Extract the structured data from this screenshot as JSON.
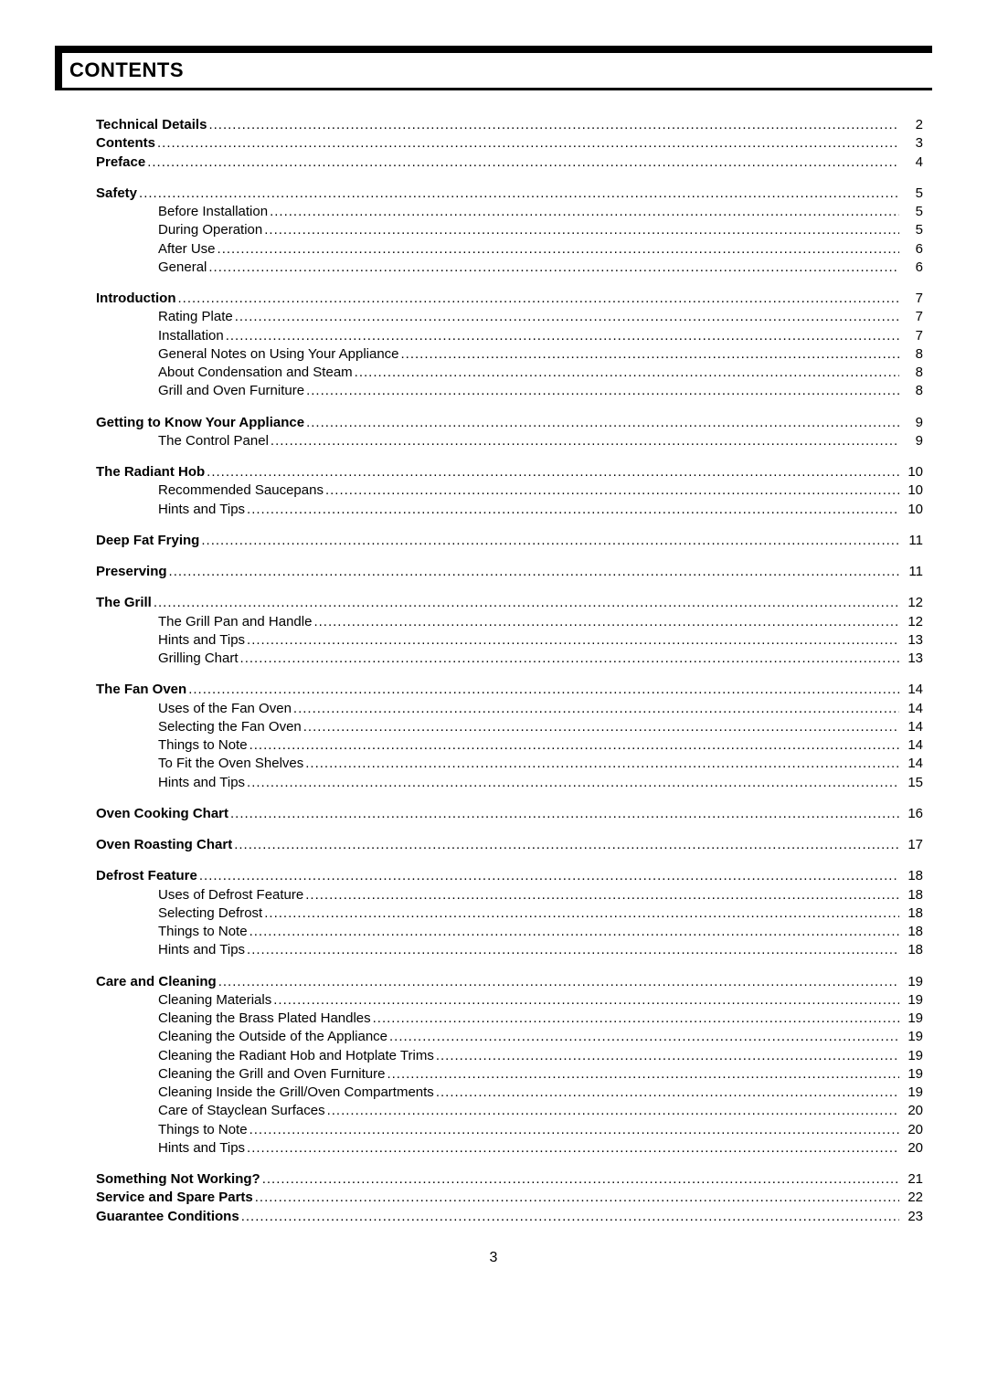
{
  "header": {
    "title": "CONTENTS"
  },
  "toc": {
    "groups": [
      {
        "items": [
          {
            "label": "Technical Details",
            "page": "2",
            "bold": true,
            "indent": 0
          },
          {
            "label": "Contents",
            "page": "3",
            "bold": true,
            "indent": 0
          },
          {
            "label": "Preface",
            "page": "4",
            "bold": true,
            "indent": 0
          }
        ]
      },
      {
        "items": [
          {
            "label": "Safety",
            "page": "5",
            "bold": true,
            "indent": 0
          },
          {
            "label": "Before Installation",
            "page": "5",
            "bold": false,
            "indent": 1
          },
          {
            "label": "During Operation",
            "page": "5",
            "bold": false,
            "indent": 1
          },
          {
            "label": "After Use",
            "page": "6",
            "bold": false,
            "indent": 1
          },
          {
            "label": "General",
            "page": "6",
            "bold": false,
            "indent": 1
          }
        ]
      },
      {
        "items": [
          {
            "label": "Introduction",
            "page": "7",
            "bold": true,
            "indent": 0
          },
          {
            "label": "Rating Plate",
            "page": "7",
            "bold": false,
            "indent": 1
          },
          {
            "label": "Installation",
            "page": "7",
            "bold": false,
            "indent": 1
          },
          {
            "label": "General Notes on Using Your Appliance",
            "page": "8",
            "bold": false,
            "indent": 1
          },
          {
            "label": "About Condensation and Steam",
            "page": "8",
            "bold": false,
            "indent": 1
          },
          {
            "label": "Grill and Oven Furniture",
            "page": "8",
            "bold": false,
            "indent": 1
          }
        ]
      },
      {
        "items": [
          {
            "label": "Getting to Know Your Appliance",
            "page": "9",
            "bold": true,
            "indent": 0
          },
          {
            "label": "The Control Panel",
            "page": "9",
            "bold": false,
            "indent": 1
          }
        ]
      },
      {
        "items": [
          {
            "label": "The Radiant Hob",
            "page": "10",
            "bold": true,
            "indent": 0
          },
          {
            "label": "Recommended Saucepans",
            "page": "10",
            "bold": false,
            "indent": 1
          },
          {
            "label": "Hints and Tips",
            "page": "10",
            "bold": false,
            "indent": 1
          }
        ]
      },
      {
        "items": [
          {
            "label": "Deep Fat Frying",
            "page": "11",
            "bold": true,
            "indent": 0
          }
        ]
      },
      {
        "items": [
          {
            "label": "Preserving",
            "page": "11",
            "bold": true,
            "indent": 0
          }
        ]
      },
      {
        "items": [
          {
            "label": "The Grill",
            "page": "12",
            "bold": true,
            "indent": 0
          },
          {
            "label": "The Grill Pan and Handle",
            "page": "12",
            "bold": false,
            "indent": 1
          },
          {
            "label": "Hints and Tips",
            "page": "13",
            "bold": false,
            "indent": 1
          },
          {
            "label": "Grilling Chart",
            "page": "13",
            "bold": false,
            "indent": 1
          }
        ]
      },
      {
        "items": [
          {
            "label": "The Fan Oven",
            "page": "14",
            "bold": true,
            "indent": 0
          },
          {
            "label": "Uses of the Fan Oven",
            "page": "14",
            "bold": false,
            "indent": 1
          },
          {
            "label": "Selecting the Fan Oven",
            "page": "14",
            "bold": false,
            "indent": 1
          },
          {
            "label": "Things to Note",
            "page": "14",
            "bold": false,
            "indent": 1
          },
          {
            "label": "To Fit the Oven Shelves",
            "page": "14",
            "bold": false,
            "indent": 1
          },
          {
            "label": "Hints and Tips",
            "page": "15",
            "bold": false,
            "indent": 1
          }
        ]
      },
      {
        "items": [
          {
            "label": "Oven Cooking Chart",
            "page": "16",
            "bold": true,
            "indent": 0
          }
        ]
      },
      {
        "items": [
          {
            "label": "Oven Roasting Chart",
            "page": "17",
            "bold": true,
            "indent": 0
          }
        ]
      },
      {
        "items": [
          {
            "label": "Defrost Feature",
            "page": "18",
            "bold": true,
            "indent": 0
          },
          {
            "label": "Uses of Defrost Feature",
            "page": "18",
            "bold": false,
            "indent": 1
          },
          {
            "label": "Selecting Defrost",
            "page": "18",
            "bold": false,
            "indent": 1
          },
          {
            "label": "Things to Note",
            "page": "18",
            "bold": false,
            "indent": 1
          },
          {
            "label": "Hints and Tips",
            "page": "18",
            "bold": false,
            "indent": 1
          }
        ]
      },
      {
        "items": [
          {
            "label": "Care and Cleaning",
            "page": "19",
            "bold": true,
            "indent": 0
          },
          {
            "label": "Cleaning Materials",
            "page": "19",
            "bold": false,
            "indent": 1
          },
          {
            "label": "Cleaning the Brass Plated Handles",
            "page": "19",
            "bold": false,
            "indent": 1
          },
          {
            "label": "Cleaning the Outside of the Appliance",
            "page": "19",
            "bold": false,
            "indent": 1
          },
          {
            "label": "Cleaning the Radiant Hob and Hotplate Trims",
            "page": "19",
            "bold": false,
            "indent": 1
          },
          {
            "label": "Cleaning the Grill and Oven Furniture",
            "page": "19",
            "bold": false,
            "indent": 1
          },
          {
            "label": "Cleaning Inside the Grill/Oven Compartments",
            "page": "19",
            "bold": false,
            "indent": 1
          },
          {
            "label": "Care of Stayclean Surfaces",
            "page": "20",
            "bold": false,
            "indent": 1
          },
          {
            "label": "Things to Note",
            "page": "20",
            "bold": false,
            "indent": 1
          },
          {
            "label": "Hints and Tips",
            "page": "20",
            "bold": false,
            "indent": 1
          }
        ]
      },
      {
        "items": [
          {
            "label": "Something Not Working?",
            "page": "21",
            "bold": true,
            "indent": 0
          },
          {
            "label": "Service and Spare Parts",
            "page": "22",
            "bold": true,
            "indent": 0
          },
          {
            "label": "Guarantee Conditions",
            "page": "23",
            "bold": true,
            "indent": 0
          }
        ]
      }
    ]
  },
  "footer": {
    "page_number": "3"
  },
  "style": {
    "background_color": "#ffffff",
    "text_color": "#000000",
    "accent_color": "#000000",
    "font_family": "Arial, Helvetica, sans-serif",
    "title_fontsize": 22,
    "body_fontsize": 15,
    "header_bar_height": 8,
    "title_underline_width": 3
  }
}
